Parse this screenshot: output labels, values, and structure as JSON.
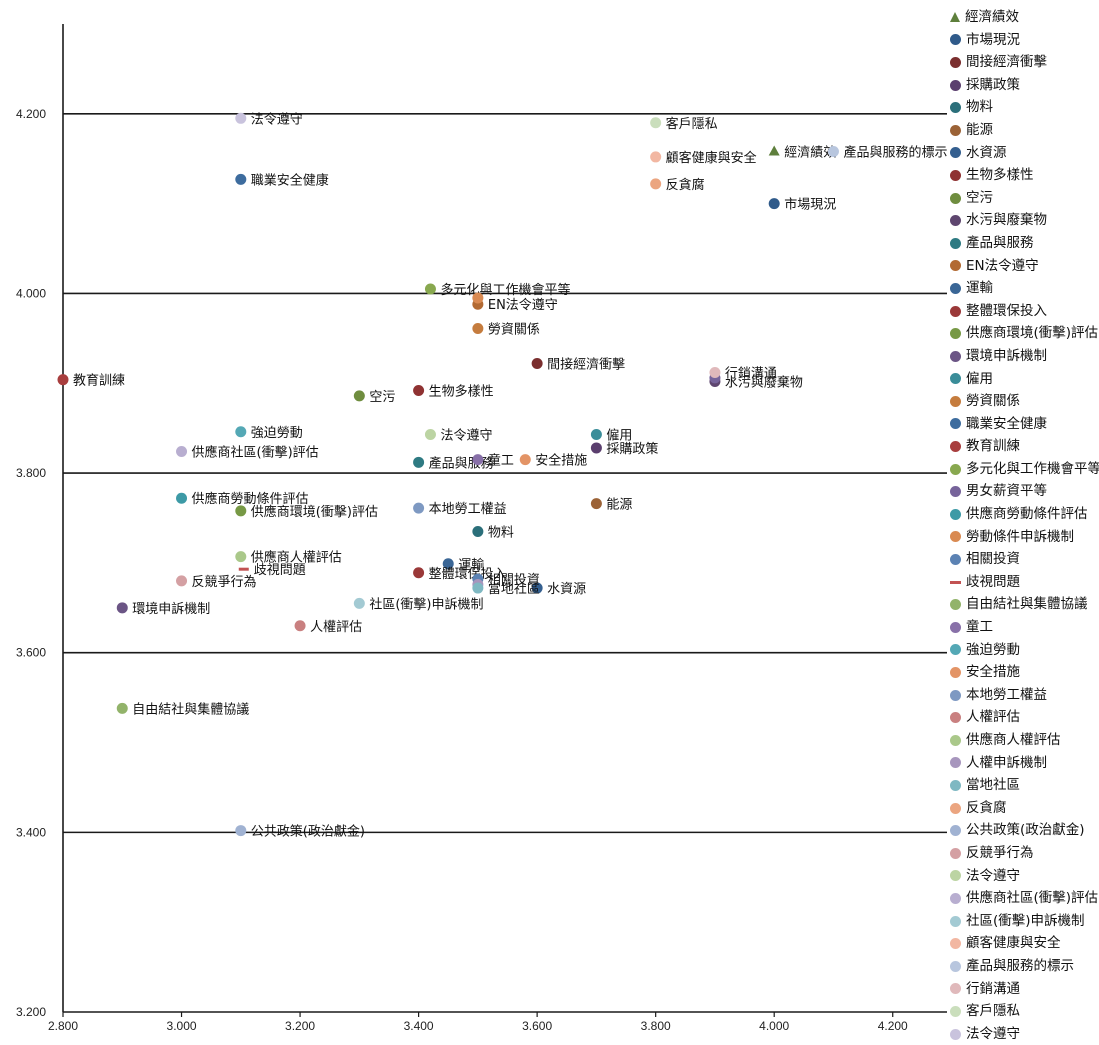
{
  "chart_data": {
    "type": "scatter",
    "title": "",
    "xlabel": "",
    "ylabel": "",
    "xlim": [
      2.8,
      4.3
    ],
    "ylim": [
      3.2,
      4.3
    ],
    "xticks": [
      2.8,
      3.0,
      3.2,
      3.4,
      3.6,
      3.8,
      4.0,
      4.2
    ],
    "xtick_labels": [
      "2.800",
      "3.000",
      "3.200",
      "3.400",
      "3.600",
      "3.800",
      "4.000",
      "4.200"
    ],
    "yticks": [
      3.2,
      3.4,
      3.6,
      3.8,
      4.0,
      4.2
    ],
    "ytick_labels": [
      "3.200",
      "3.400",
      "3.600",
      "3.800",
      "4.000",
      "4.200"
    ],
    "grid": "horizontal",
    "legend_position": "right",
    "series": [
      {
        "name": "經濟績效",
        "x": 4.0,
        "y": 4.158,
        "label": "經濟績效",
        "color": "#5e7f3c",
        "marker": "triangle"
      },
      {
        "name": "市場現況",
        "x": 4.0,
        "y": 4.1,
        "label": "市場現況",
        "color": "#2f5a8a"
      },
      {
        "name": "間接經濟衝擊",
        "x": 3.6,
        "y": 3.922,
        "label": "間接經濟衝擊",
        "color": "#7a2e2e"
      },
      {
        "name": "採購政策",
        "x": 3.7,
        "y": 3.828,
        "label": "採購政策",
        "color": "#5b3f6e"
      },
      {
        "name": "物料",
        "x": 3.5,
        "y": 3.735,
        "label": "物料",
        "color": "#2b6f7a"
      },
      {
        "name": "能源",
        "x": 3.7,
        "y": 3.766,
        "label": "能源",
        "color": "#9b6236"
      },
      {
        "name": "水資源",
        "x": 3.6,
        "y": 3.672,
        "label": "水資源",
        "color": "#345f8f"
      },
      {
        "name": "生物多樣性",
        "x": 3.4,
        "y": 3.892,
        "label": "生物多樣性",
        "color": "#8f3232"
      },
      {
        "name": "空污",
        "x": 3.3,
        "y": 3.886,
        "label": "空污",
        "color": "#6f8d3f"
      },
      {
        "name": "水污與廢棄物",
        "x": 3.9,
        "y": 3.902,
        "label": "水污與廢棄物",
        "color": "#5e466f"
      },
      {
        "name": "產品與服務",
        "x": 3.4,
        "y": 3.812,
        "label": "產品與服務",
        "color": "#2e7a82"
      },
      {
        "name": "EN法令遵守",
        "x": 3.5,
        "y": 3.988,
        "label": "EN法令遵守",
        "color": "#b26a33"
      },
      {
        "name": "運輸",
        "x": 3.45,
        "y": 3.699,
        "label": "運輸",
        "color": "#3a6696"
      },
      {
        "name": "整體環保投入",
        "x": 3.4,
        "y": 3.689,
        "label": "整體環保投入",
        "color": "#9a3838"
      },
      {
        "name": "供應商環境(衝擊)評估",
        "x": 3.1,
        "y": 3.758,
        "label": "供應商環境(衝擊)評估",
        "color": "#779945"
      },
      {
        "name": "環境申訴機制",
        "x": 2.9,
        "y": 3.65,
        "label": "環境申訴機制",
        "color": "#6b5585"
      },
      {
        "name": "僱用",
        "x": 3.7,
        "y": 3.843,
        "label": "僱用",
        "color": "#3a8d99"
      },
      {
        "name": "勞資關係",
        "x": 3.5,
        "y": 3.961,
        "label": "勞資關係",
        "color": "#c57c3e"
      },
      {
        "name": "職業安全健康",
        "x": 3.1,
        "y": 4.127,
        "label": "職業安全健康",
        "color": "#3d6c9e"
      },
      {
        "name": "教育訓練",
        "x": 2.8,
        "y": 3.904,
        "label": "教育訓練",
        "color": "#a83e3e"
      },
      {
        "name": "多元化與工作機會平等",
        "x": 3.42,
        "y": 4.005,
        "label": "多元化與工作機會平等",
        "color": "#88a84f"
      },
      {
        "name": "男女薪資平等",
        "x": 3.9,
        "y": 3.906,
        "label": "",
        "color": "#76639a"
      },
      {
        "name": "供應商勞動條件評估",
        "x": 3.0,
        "y": 3.772,
        "label": "供應商勞動條件評估",
        "color": "#3d9aa6"
      },
      {
        "name": "勞動條件申訴機制",
        "x": 3.5,
        "y": 3.995,
        "label": "",
        "color": "#d98a52"
      },
      {
        "name": "相關投資",
        "x": 3.5,
        "y": 3.682,
        "label": "相關投資",
        "color": "#5b82b3"
      },
      {
        "name": "歧視問題",
        "x": 3.105,
        "y": 3.693,
        "label": "歧視問題",
        "color": "#c25252",
        "marker": "dash"
      },
      {
        "name": "自由結社與集體協議",
        "x": 2.9,
        "y": 3.538,
        "label": "自由結社與集體協議",
        "color": "#92b36a"
      },
      {
        "name": "童工",
        "x": 3.5,
        "y": 3.815,
        "label": "童工",
        "color": "#8870a8"
      },
      {
        "name": "強迫勞動",
        "x": 3.1,
        "y": 3.846,
        "label": "強迫勞動",
        "color": "#54a8b5"
      },
      {
        "name": "安全措施",
        "x": 3.58,
        "y": 3.815,
        "label": "安全措施",
        "color": "#e39466"
      },
      {
        "name": "本地勞工權益",
        "x": 3.4,
        "y": 3.761,
        "label": "本地勞工權益",
        "color": "#7e99c2"
      },
      {
        "name": "人權評估",
        "x": 3.2,
        "y": 3.63,
        "label": "人權評估",
        "color": "#c98080"
      },
      {
        "name": "供應商人權評估",
        "x": 3.1,
        "y": 3.707,
        "label": "供應商人權評估",
        "color": "#aac88a"
      },
      {
        "name": "人權申訴機制",
        "x": 3.5,
        "y": 3.676,
        "label": "",
        "color": "#a796bd"
      },
      {
        "name": "當地社區",
        "x": 3.5,
        "y": 3.672,
        "label": "當地社區",
        "color": "#7fb8c2"
      },
      {
        "name": "反貪腐",
        "x": 3.8,
        "y": 4.122,
        "label": "反貪腐",
        "color": "#eba580"
      },
      {
        "name": "公共政策(政治獻金)",
        "x": 3.1,
        "y": 3.402,
        "label": "公共政策(政治獻金)",
        "color": "#a0b2d2"
      },
      {
        "name": "反競爭行為",
        "x": 3.0,
        "y": 3.68,
        "label": "反競爭行為",
        "color": "#d4a0a3"
      },
      {
        "name": "法令遵守",
        "x": 3.42,
        "y": 3.843,
        "label": "法令遵守",
        "color": "#bcd4a3"
      },
      {
        "name": "供應商社區(衝擊)評估",
        "x": 3.0,
        "y": 3.824,
        "label": "供應商社區(衝擊)評估",
        "color": "#b8aed0"
      },
      {
        "name": "社區(衝擊)申訴機制",
        "x": 3.3,
        "y": 3.655,
        "label": "社區(衝擊)申訴機制",
        "color": "#a3cad3"
      },
      {
        "name": "顧客健康與安全",
        "x": 3.8,
        "y": 4.152,
        "label": "顧客健康與安全",
        "color": "#f2b7a2"
      },
      {
        "name": "產品與服務的標示",
        "x": 4.1,
        "y": 4.158,
        "label": "產品與服務的標示",
        "color": "#b8c6de"
      },
      {
        "name": "行銷溝通",
        "x": 3.9,
        "y": 3.912,
        "label": "行銷溝通",
        "color": "#e0b9bb"
      },
      {
        "name": "客戶隱私",
        "x": 3.8,
        "y": 4.19,
        "label": "客戶隱私",
        "color": "#cadebc"
      },
      {
        "name": "法令遵守",
        "x": 3.1,
        "y": 4.195,
        "label": "法令遵守",
        "color": "#c9c3dd"
      }
    ]
  }
}
